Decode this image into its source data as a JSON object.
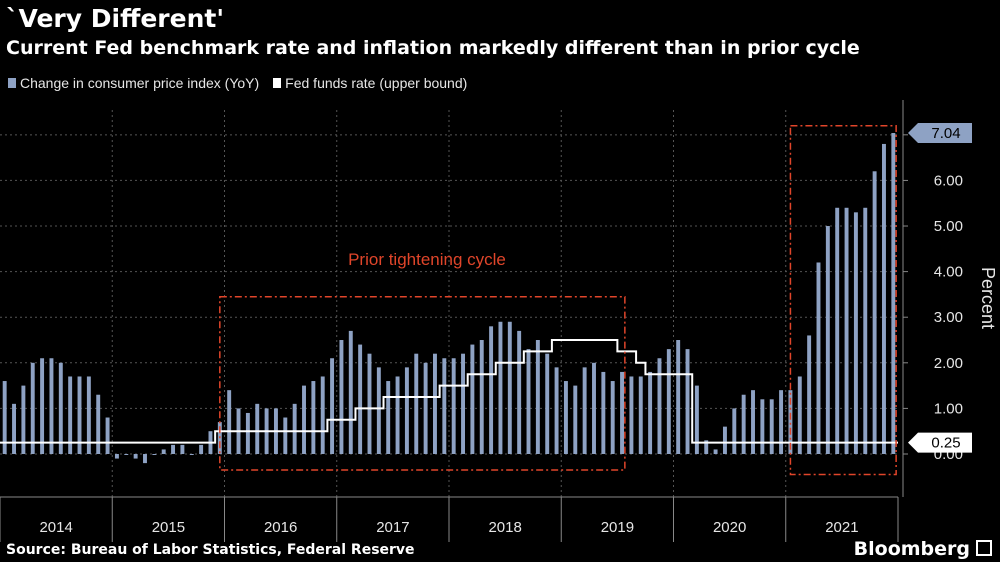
{
  "header": {
    "title": "`Very Different'",
    "subtitle": "Current Fed benchmark rate and inflation markedly different than in prior cycle"
  },
  "footer": {
    "source": "Source: Bureau of Labor Statistics, Federal Reserve",
    "brand": "Bloomberg"
  },
  "colors": {
    "background": "#000000",
    "cpi_bars": "#8ea2c4",
    "fed_line": "#ffffff",
    "annotation": "#e0452a",
    "grid": "#555555"
  },
  "chart_data": {
    "type": "bar",
    "title": "`Very Different'",
    "subtitle": "Current Fed benchmark rate and inflation markedly different than in prior cycle",
    "ylabel": "Percent",
    "xlabel": "",
    "ylim": [
      -0.5,
      7.3
    ],
    "y_ticks": [
      0,
      1,
      2,
      3,
      4,
      5,
      6,
      7
    ],
    "y_tick_labels": [
      "0.00",
      "1.00",
      "2.00",
      "3.00",
      "4.00",
      "5.00",
      "6.00",
      "7.00"
    ],
    "x_year_labels": [
      "2014",
      "2015",
      "2016",
      "2017",
      "2018",
      "2019",
      "2020",
      "2021"
    ],
    "start": "2014-01",
    "end": "2021-12",
    "grid": true,
    "legend_position": "top-left",
    "series": [
      {
        "name": "Change in consumer price index (YoY)",
        "kind": "bar",
        "color": "#8ea2c4",
        "values": [
          1.6,
          1.1,
          1.5,
          2.0,
          2.1,
          2.1,
          2.0,
          1.7,
          1.7,
          1.7,
          1.3,
          0.8,
          -0.1,
          0.0,
          -0.1,
          -0.2,
          0.0,
          0.1,
          0.2,
          0.2,
          0.0,
          0.2,
          0.5,
          0.7,
          1.4,
          1.0,
          0.9,
          1.1,
          1.0,
          1.0,
          0.8,
          1.1,
          1.5,
          1.6,
          1.7,
          2.1,
          2.5,
          2.7,
          2.4,
          2.2,
          1.9,
          1.6,
          1.7,
          1.9,
          2.2,
          2.0,
          2.2,
          2.1,
          2.1,
          2.2,
          2.4,
          2.5,
          2.8,
          2.9,
          2.9,
          2.7,
          2.3,
          2.5,
          2.2,
          1.9,
          1.6,
          1.5,
          1.9,
          2.0,
          1.8,
          1.6,
          1.8,
          1.7,
          1.7,
          1.8,
          2.1,
          2.3,
          2.5,
          2.3,
          1.5,
          0.3,
          0.1,
          0.6,
          1.0,
          1.3,
          1.4,
          1.2,
          1.2,
          1.4,
          1.4,
          1.7,
          2.6,
          4.2,
          5.0,
          5.4,
          5.4,
          5.3,
          5.4,
          6.2,
          6.8,
          7.04
        ]
      },
      {
        "name": "Fed funds rate (upper bound)",
        "kind": "step-line",
        "color": "#ffffff",
        "values": [
          0.25,
          0.25,
          0.25,
          0.25,
          0.25,
          0.25,
          0.25,
          0.25,
          0.25,
          0.25,
          0.25,
          0.25,
          0.25,
          0.25,
          0.25,
          0.25,
          0.25,
          0.25,
          0.25,
          0.25,
          0.25,
          0.25,
          0.25,
          0.5,
          0.5,
          0.5,
          0.5,
          0.5,
          0.5,
          0.5,
          0.5,
          0.5,
          0.5,
          0.5,
          0.5,
          0.75,
          0.75,
          0.75,
          1.0,
          1.0,
          1.0,
          1.25,
          1.25,
          1.25,
          1.25,
          1.25,
          1.25,
          1.5,
          1.5,
          1.5,
          1.75,
          1.75,
          1.75,
          2.0,
          2.0,
          2.0,
          2.25,
          2.25,
          2.25,
          2.5,
          2.5,
          2.5,
          2.5,
          2.5,
          2.5,
          2.5,
          2.25,
          2.25,
          2.0,
          1.75,
          1.75,
          1.75,
          1.75,
          1.75,
          0.25,
          0.25,
          0.25,
          0.25,
          0.25,
          0.25,
          0.25,
          0.25,
          0.25,
          0.25,
          0.25,
          0.25,
          0.25,
          0.25,
          0.25,
          0.25,
          0.25,
          0.25,
          0.25,
          0.25,
          0.25,
          0.25
        ]
      }
    ],
    "end_labels": [
      "7.04",
      "0.25"
    ],
    "annotations": [
      {
        "label": "Prior tightening cycle",
        "from": "2015-12",
        "to": "2019-07",
        "y_range": [
          -0.35,
          3.45
        ]
      },
      {
        "label": "",
        "from": "2021-01",
        "to": "2021-12",
        "y_range": [
          -0.45,
          7.2
        ]
      }
    ]
  }
}
